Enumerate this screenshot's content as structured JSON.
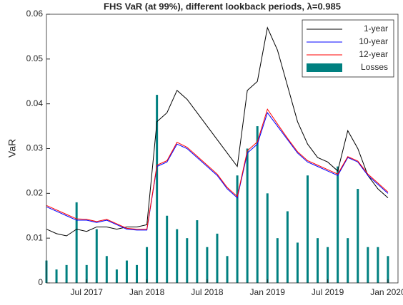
{
  "chart_data": {
    "type": "line",
    "title": "FHS VaR (at 99%), different lookback periods, λ=0.985",
    "y_label": "VaR",
    "x": [
      "2017-03",
      "2017-04",
      "2017-05",
      "2017-06",
      "2017-07",
      "2017-08",
      "2017-09",
      "2017-10",
      "2017-11",
      "2017-12",
      "2018-01",
      "2018-02",
      "2018-03",
      "2018-04",
      "2018-05",
      "2018-06",
      "2018-07",
      "2018-08",
      "2018-09",
      "2018-10",
      "2018-11",
      "2018-12",
      "2019-01",
      "2019-02",
      "2019-03",
      "2019-04",
      "2019-05",
      "2019-06",
      "2019-07",
      "2019-08",
      "2019-09",
      "2019-10",
      "2019-11",
      "2019-12",
      "2020-01"
    ],
    "series": [
      {
        "name": "1-year",
        "color": "#000000",
        "type": "line",
        "values": [
          0.012,
          0.011,
          0.0105,
          0.012,
          0.0115,
          0.0125,
          0.0125,
          0.012,
          0.0125,
          0.0125,
          0.013,
          0.036,
          0.038,
          0.043,
          0.041,
          0.038,
          0.035,
          0.032,
          0.029,
          0.026,
          0.043,
          0.045,
          0.057,
          0.052,
          0.044,
          0.036,
          0.031,
          0.028,
          0.027,
          0.025,
          0.034,
          0.03,
          0.024,
          0.021,
          0.019
        ]
      },
      {
        "name": "10-year",
        "color": "#0000ff",
        "type": "line",
        "values": [
          0.017,
          0.016,
          0.015,
          0.014,
          0.014,
          0.0135,
          0.014,
          0.013,
          0.012,
          0.0118,
          0.0118,
          0.026,
          0.027,
          0.031,
          0.03,
          0.028,
          0.026,
          0.024,
          0.021,
          0.019,
          0.029,
          0.031,
          0.038,
          0.035,
          0.032,
          0.029,
          0.027,
          0.026,
          0.025,
          0.024,
          0.028,
          0.027,
          0.024,
          0.022,
          0.02
        ]
      },
      {
        "name": "12-year",
        "color": "#ff0000",
        "type": "line",
        "values": [
          0.0173,
          0.0163,
          0.0153,
          0.0143,
          0.0142,
          0.0137,
          0.0142,
          0.0132,
          0.0122,
          0.012,
          0.012,
          0.0263,
          0.0273,
          0.0314,
          0.0303,
          0.0283,
          0.0263,
          0.0243,
          0.0213,
          0.0193,
          0.0295,
          0.0315,
          0.0388,
          0.0355,
          0.0323,
          0.0293,
          0.0273,
          0.0263,
          0.0253,
          0.0243,
          0.0282,
          0.0272,
          0.0243,
          0.0223,
          0.0203
        ]
      },
      {
        "name": "Losses",
        "color": "#008080",
        "type": "bar",
        "values": [
          0.005,
          0.003,
          0.004,
          0.018,
          0.004,
          0.012,
          0.006,
          0.003,
          0.005,
          0.004,
          0.008,
          0.042,
          0.015,
          0.012,
          0.01,
          0.014,
          0.008,
          0.011,
          0.006,
          0.024,
          0.03,
          0.035,
          0.02,
          0.01,
          0.016,
          0.009,
          0.024,
          0.01,
          0.008,
          0.026,
          0.01,
          0.021,
          0.008,
          0.008,
          0.006
        ]
      }
    ],
    "xlim": [
      "2017-03",
      "2020-02"
    ],
    "xticks": [
      {
        "value": "2017-07",
        "label": "Jul 2017"
      },
      {
        "value": "2018-01",
        "label": "Jan 2018"
      },
      {
        "value": "2018-07",
        "label": "Jul 2018"
      },
      {
        "value": "2019-01",
        "label": "Jan 2019"
      },
      {
        "value": "2019-07",
        "label": "Jul 2019"
      },
      {
        "value": "2020-01",
        "label": "Jan 2020"
      }
    ],
    "ylim": [
      0,
      0.06
    ],
    "yticks": [
      0,
      0.01,
      0.02,
      0.03,
      0.04,
      0.05,
      0.06
    ],
    "legend": "top-right"
  }
}
